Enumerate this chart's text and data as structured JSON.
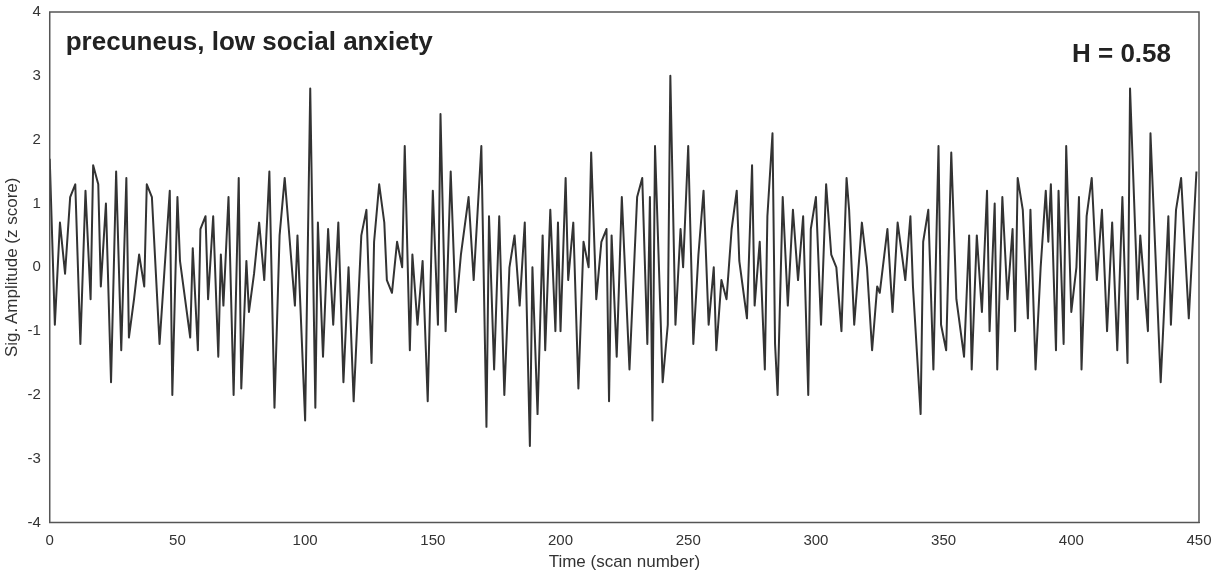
{
  "chart_data": {
    "type": "line",
    "xlabel": "Time (scan number)",
    "ylabel": "Sig. Amplitude (z score)",
    "annotations": [
      "precuneus, low social anxiety",
      "H = 0.58"
    ],
    "xlim": [
      0,
      450
    ],
    "xticks": [
      0,
      50,
      100,
      150,
      200,
      250,
      300,
      350,
      400,
      450
    ],
    "ylim": [
      -4,
      4
    ],
    "yticks": [
      -4,
      -3,
      -2,
      -1,
      0,
      1,
      2,
      3,
      4
    ],
    "grid": false,
    "legend": false,
    "series": [
      {
        "color": "#333333",
        "x": [
          0,
          2,
          4,
          6,
          8,
          10,
          12,
          14,
          16,
          17,
          19,
          20,
          22,
          24,
          26,
          28,
          30,
          31,
          33,
          35,
          37,
          38,
          40,
          43,
          45,
          47,
          48,
          50,
          51,
          53,
          55,
          56,
          58,
          59,
          61,
          62,
          64,
          66,
          67,
          68,
          70,
          72,
          74,
          75,
          77,
          78,
          80,
          82,
          84,
          86,
          88,
          90,
          92,
          94,
          96,
          97,
          100,
          102,
          104,
          105,
          107,
          109,
          111,
          113,
          115,
          117,
          119,
          122,
          124,
          126,
          127,
          129,
          131,
          132,
          134,
          136,
          138,
          139,
          141,
          142,
          144,
          146,
          148,
          150,
          152,
          153,
          155,
          157,
          159,
          161,
          164,
          166,
          169,
          171,
          172,
          174,
          176,
          178,
          180,
          182,
          184,
          186,
          188,
          189,
          191,
          193,
          194,
          196,
          198,
          199,
          200,
          202,
          203,
          205,
          207,
          209,
          211,
          212,
          214,
          216,
          218,
          219,
          220,
          222,
          224,
          227,
          230,
          232,
          234,
          235,
          236,
          237,
          240,
          242,
          243,
          245,
          247,
          248,
          250,
          252,
          254,
          256,
          258,
          260,
          261,
          263,
          265,
          267,
          269,
          270,
          273,
          275,
          276,
          278,
          280,
          281,
          283,
          284,
          285,
          287,
          289,
          291,
          293,
          295,
          297,
          298,
          300,
          302,
          304,
          306,
          308,
          310,
          312,
          313,
          315,
          318,
          320,
          322,
          324,
          325,
          328,
          330,
          332,
          335,
          337,
          338,
          341,
          342,
          344,
          346,
          348,
          349,
          351,
          353,
          355,
          358,
          360,
          361,
          363,
          365,
          367,
          368,
          370,
          371,
          373,
          375,
          377,
          378,
          379,
          381,
          383,
          384,
          386,
          388,
          390,
          391,
          392,
          394,
          395,
          397,
          398,
          400,
          402,
          403,
          404,
          406,
          408,
          410,
          412,
          414,
          416,
          418,
          420,
          422,
          423,
          426,
          427,
          430,
          431,
          435,
          437,
          438,
          439,
          441,
          443,
          446,
          449
        ],
        "values": [
          1.7,
          -0.9,
          0.7,
          -0.1,
          1.1,
          1.3,
          -1.2,
          1.2,
          -0.5,
          1.6,
          1.3,
          -0.3,
          1.0,
          -1.8,
          1.5,
          -1.3,
          1.4,
          -1.1,
          -0.5,
          0.2,
          -0.3,
          1.3,
          1.1,
          -1.2,
          0.0,
          1.2,
          -2.0,
          1.1,
          0.1,
          -0.5,
          -1.1,
          0.3,
          -1.3,
          0.6,
          0.8,
          -0.5,
          0.8,
          -1.4,
          0.2,
          -0.6,
          1.1,
          -2.0,
          1.4,
          -1.9,
          0.1,
          -0.7,
          -0.1,
          0.7,
          -0.2,
          1.5,
          -2.2,
          0.5,
          1.4,
          0.4,
          -0.6,
          0.5,
          -2.4,
          2.8,
          -2.2,
          0.7,
          -1.4,
          0.6,
          -0.9,
          0.7,
          -1.8,
          0.0,
          -2.1,
          0.5,
          0.9,
          -1.5,
          0.4,
          1.3,
          0.7,
          -0.2,
          -0.4,
          0.4,
          0.0,
          1.9,
          -1.3,
          0.2,
          -0.9,
          0.1,
          -2.1,
          1.2,
          -0.9,
          2.4,
          -1.0,
          1.5,
          -0.7,
          0.2,
          1.1,
          -0.2,
          1.9,
          -2.5,
          0.8,
          -1.6,
          0.8,
          -2.0,
          0.0,
          0.5,
          -0.6,
          0.7,
          -2.8,
          0.0,
          -2.3,
          0.5,
          -1.3,
          0.9,
          -1.0,
          0.7,
          -1.0,
          1.4,
          -0.2,
          0.7,
          -1.9,
          0.4,
          0.0,
          1.8,
          -0.5,
          0.4,
          0.6,
          -2.1,
          0.5,
          -1.4,
          1.1,
          -1.6,
          1.1,
          1.4,
          -1.2,
          1.1,
          -2.4,
          1.9,
          -1.8,
          -0.9,
          3.0,
          -0.9,
          0.6,
          0.0,
          1.9,
          -1.2,
          0.2,
          1.2,
          -0.9,
          0.0,
          -1.3,
          -0.2,
          -0.5,
          0.6,
          1.2,
          0.1,
          -0.8,
          1.6,
          -0.6,
          0.4,
          -1.6,
          0.8,
          2.1,
          -1.2,
          -2.0,
          1.1,
          -0.6,
          0.9,
          -0.2,
          0.8,
          -2.0,
          0.6,
          1.1,
          -0.9,
          1.3,
          0.2,
          0.0,
          -1.0,
          1.4,
          0.9,
          -0.9,
          0.7,
          0.0,
          -1.3,
          -0.3,
          -0.4,
          0.6,
          -0.7,
          0.7,
          -0.2,
          0.8,
          -0.3,
          -2.3,
          0.4,
          0.9,
          -1.6,
          1.9,
          -0.9,
          -1.3,
          1.8,
          -0.5,
          -1.4,
          0.5,
          -1.6,
          0.5,
          -0.7,
          1.2,
          -1.0,
          1.0,
          -1.6,
          1.1,
          -0.5,
          0.6,
          -1.0,
          1.4,
          0.9,
          -0.8,
          0.9,
          -1.6,
          0.0,
          1.2,
          0.4,
          1.3,
          -1.3,
          1.2,
          -1.2,
          1.9,
          -0.7,
          0.0,
          1.1,
          -1.6,
          0.8,
          1.4,
          -0.2,
          0.9,
          -1.0,
          0.7,
          -1.3,
          1.1,
          -1.5,
          2.8,
          -0.5,
          0.5,
          -1.0,
          2.1,
          -1.8,
          -0.1,
          0.8,
          -0.9,
          0.9,
          1.4,
          -0.8,
          1.5
        ]
      }
    ]
  }
}
